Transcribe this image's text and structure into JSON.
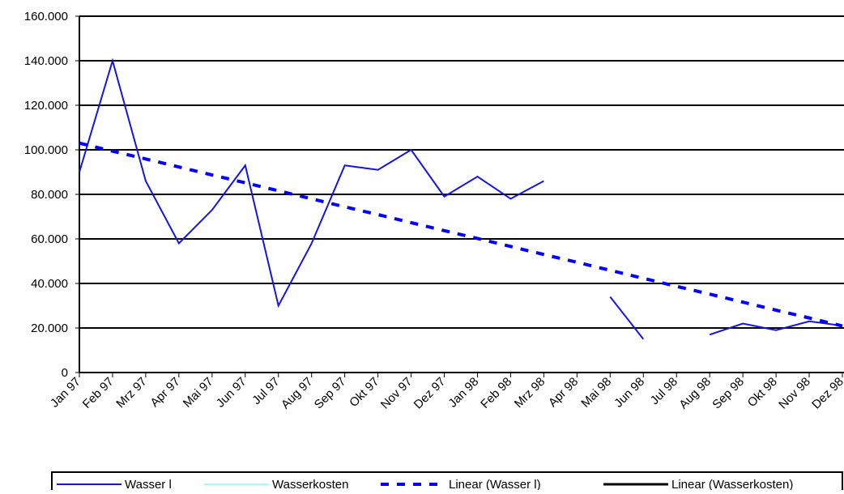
{
  "chart_data": {
    "type": "line",
    "categories": [
      "Jan 97",
      "Feb 97",
      "Mrz 97",
      "Apr 97",
      "Mai 97",
      "Jun 97",
      "Jul 97",
      "Aug 97",
      "Sep 97",
      "Okt 97",
      "Nov 97",
      "Dez 97",
      "Jan 98",
      "Feb 98",
      "Mrz 98",
      "Apr 98",
      "Mai 98",
      "Jun 98",
      "Jul 98",
      "Aug 98",
      "Sep 98",
      "Okt 98",
      "Nov 98",
      "Dez 98"
    ],
    "series": [
      {
        "name": "Wasser l",
        "color": "#1414e6",
        "width": 2,
        "dashed": false,
        "values": [
          90000,
          140000,
          86000,
          58000,
          73000,
          93000,
          30000,
          58000,
          93000,
          91000,
          100000,
          79000,
          88000,
          78000,
          86000,
          null,
          34000,
          15000,
          null,
          17000,
          22000,
          19000,
          23000,
          21000
        ]
      },
      {
        "name": "Wasserkosten",
        "color": "#99ffff",
        "width": 2,
        "dashed": false,
        "values": [
          null,
          null,
          null,
          null,
          null,
          null,
          null,
          null,
          null,
          null,
          null,
          null,
          null,
          null,
          null,
          null,
          null,
          null,
          null,
          null,
          null,
          null,
          null,
          null
        ]
      },
      {
        "name": "Linear (Wasser l)",
        "color": "#0000ff",
        "width": 4,
        "dashed": true,
        "values": [
          103000,
          99400,
          95900,
          92300,
          88700,
          85200,
          81600,
          78000,
          74400,
          70900,
          67300,
          63700,
          60200,
          56600,
          53000,
          49500,
          45900,
          42300,
          38700,
          35200,
          31600,
          28000,
          24500,
          20900
        ]
      },
      {
        "name": "Linear (Wasserkosten)",
        "color": "#000000",
        "width": 3,
        "dashed": false,
        "values": [
          null,
          null,
          null,
          null,
          null,
          null,
          null,
          null,
          null,
          null,
          null,
          null,
          null,
          null,
          null,
          null,
          null,
          null,
          null,
          null,
          null,
          null,
          null,
          null
        ]
      }
    ],
    "ylim": [
      0,
      160000
    ],
    "yticks": [
      0,
      {
        "value": 20000,
        "label": "20.000"
      },
      {
        "value": 40000,
        "label": "40.000"
      },
      {
        "value": 60000,
        "label": "60.000"
      },
      {
        "value": 80000,
        "label": "80.000"
      },
      {
        "value": 100000,
        "label": "100.000"
      },
      {
        "value": 120000,
        "label": "120.000"
      },
      {
        "value": 140000,
        "label": "140.000"
      },
      {
        "value": 160000,
        "label": "160.000"
      }
    ],
    "grid": true,
    "legend": "bottom"
  }
}
